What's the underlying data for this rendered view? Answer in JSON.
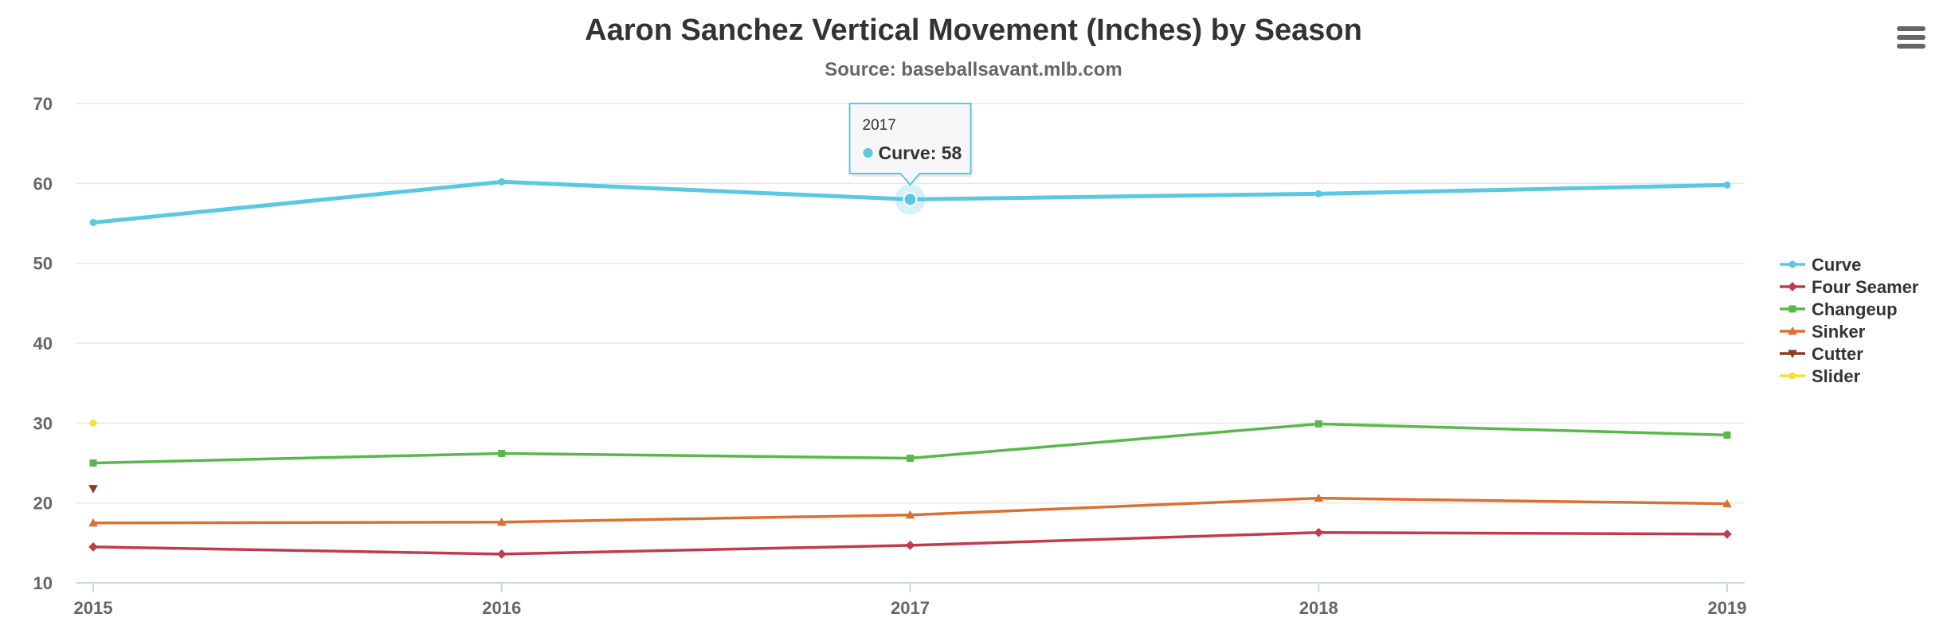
{
  "chart_data": {
    "type": "line",
    "title": "Aaron Sanchez Vertical Movement (Inches) by Season",
    "subtitle": "Source: baseballsavant.mlb.com",
    "x": [
      "2015",
      "2016",
      "2017",
      "2018",
      "2019"
    ],
    "ylim": [
      10,
      70
    ],
    "yticks": [
      10,
      20,
      30,
      40,
      50,
      60,
      70
    ],
    "grid": true,
    "legend_position": "right",
    "series": [
      {
        "name": "Curve",
        "color": "#5BC8E2",
        "marker": "circle",
        "values": [
          55.1,
          60.2,
          58,
          58.7,
          59.8
        ]
      },
      {
        "name": "Four Seamer",
        "color": "#C23B4A",
        "marker": "diamond",
        "values": [
          14.5,
          13.6,
          14.7,
          16.3,
          16.1
        ]
      },
      {
        "name": "Changeup",
        "color": "#58B84A",
        "marker": "square",
        "values": [
          25,
          26.2,
          25.6,
          29.9,
          28.5
        ]
      },
      {
        "name": "Sinker",
        "color": "#DC7030",
        "marker": "triangle",
        "values": [
          17.5,
          17.6,
          18.5,
          20.6,
          19.9
        ]
      },
      {
        "name": "Cutter",
        "color": "#8E3A22",
        "marker": "triangle-down",
        "values": [
          21.8,
          null,
          null,
          null,
          null
        ]
      },
      {
        "name": "Slider",
        "color": "#F0E040",
        "marker": "circle",
        "values": [
          30,
          null,
          null,
          null,
          null
        ]
      }
    ],
    "tooltip": {
      "x": "2017",
      "series": "Curve",
      "label": "Curve: 58"
    }
  },
  "menu": {
    "icon": "hamburger-menu-icon"
  }
}
